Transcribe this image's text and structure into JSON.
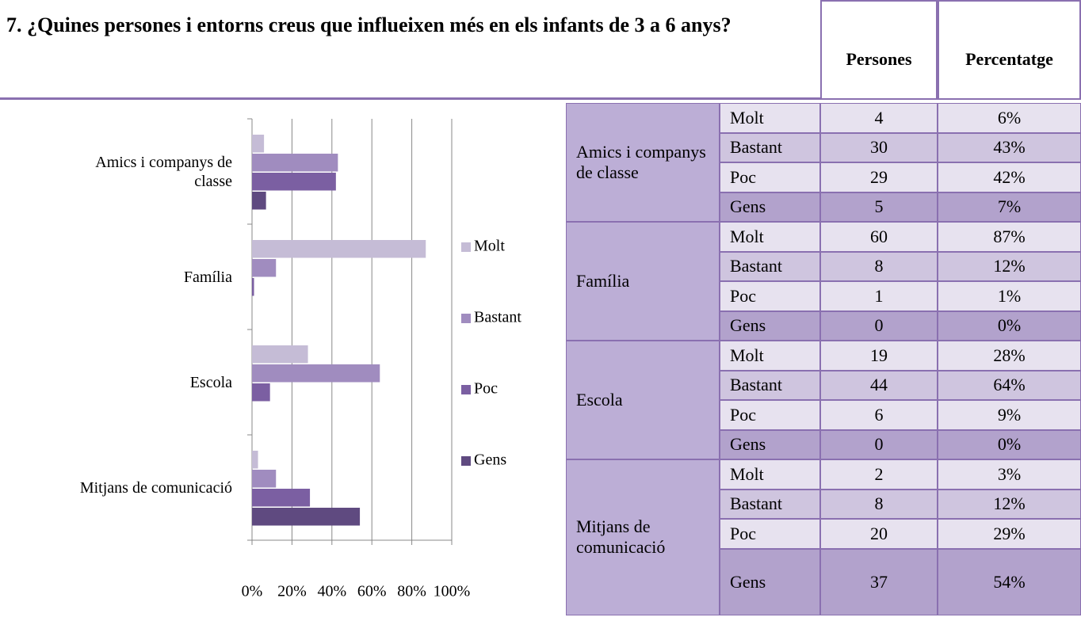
{
  "header": {
    "title": "7. ¿Quines persones i entorns creus que influeixen més en els infants de 3 a 6 anys?"
  },
  "chart_data": {
    "type": "bar",
    "orientation": "horizontal",
    "categories": [
      "Amics i companys de classe",
      "Família",
      "Escola",
      "Mitjans de comunicació"
    ],
    "series": [
      {
        "name": "Molt",
        "color": "#c5bcd6",
        "values": [
          6,
          87,
          28,
          3
        ]
      },
      {
        "name": "Bastant",
        "color": "#a08cbf",
        "values": [
          43,
          12,
          64,
          12
        ]
      },
      {
        "name": "Poc",
        "color": "#7b5fa2",
        "values": [
          42,
          1,
          9,
          29
        ]
      },
      {
        "name": "Gens",
        "color": "#5f4a80",
        "values": [
          7,
          0,
          0,
          54
        ]
      }
    ],
    "xlim": [
      0,
      100
    ],
    "xticks": [
      {
        "value": 0,
        "label": "0%"
      },
      {
        "value": 20,
        "label": "20%"
      },
      {
        "value": 40,
        "label": "40%"
      },
      {
        "value": 60,
        "label": "60%"
      },
      {
        "value": 80,
        "label": "80%"
      },
      {
        "value": 100,
        "label": "100%"
      }
    ],
    "grid": true,
    "legend": "right"
  },
  "table": {
    "header": [
      "Persones",
      "Percentatge"
    ],
    "groups": [
      {
        "label": "Amics i companys de classe",
        "rows": [
          [
            "Molt",
            "4",
            "6%"
          ],
          [
            "Bastant",
            "30",
            "43%"
          ],
          [
            "Poc",
            "29",
            "42%"
          ],
          [
            "Gens",
            "5",
            "7%"
          ]
        ]
      },
      {
        "label": "Família",
        "rows": [
          [
            "Molt",
            "60",
            "87%"
          ],
          [
            "Bastant",
            "8",
            "12%"
          ],
          [
            "Poc",
            "1",
            "1%"
          ],
          [
            "Gens",
            "0",
            "0%"
          ]
        ]
      },
      {
        "label": "Escola",
        "rows": [
          [
            "Molt",
            "19",
            "28%"
          ],
          [
            "Bastant",
            "44",
            "64%"
          ],
          [
            "Poc",
            "6",
            "9%"
          ],
          [
            "Gens",
            "0",
            "0%"
          ]
        ]
      },
      {
        "label": "Mitjans de comunicació",
        "rows": [
          [
            "Molt",
            "2",
            "3%"
          ],
          [
            "Bastant",
            "8",
            "12%"
          ],
          [
            "Poc",
            "20",
            "29%"
          ],
          [
            "Gens",
            "37",
            "54%"
          ]
        ]
      }
    ]
  }
}
